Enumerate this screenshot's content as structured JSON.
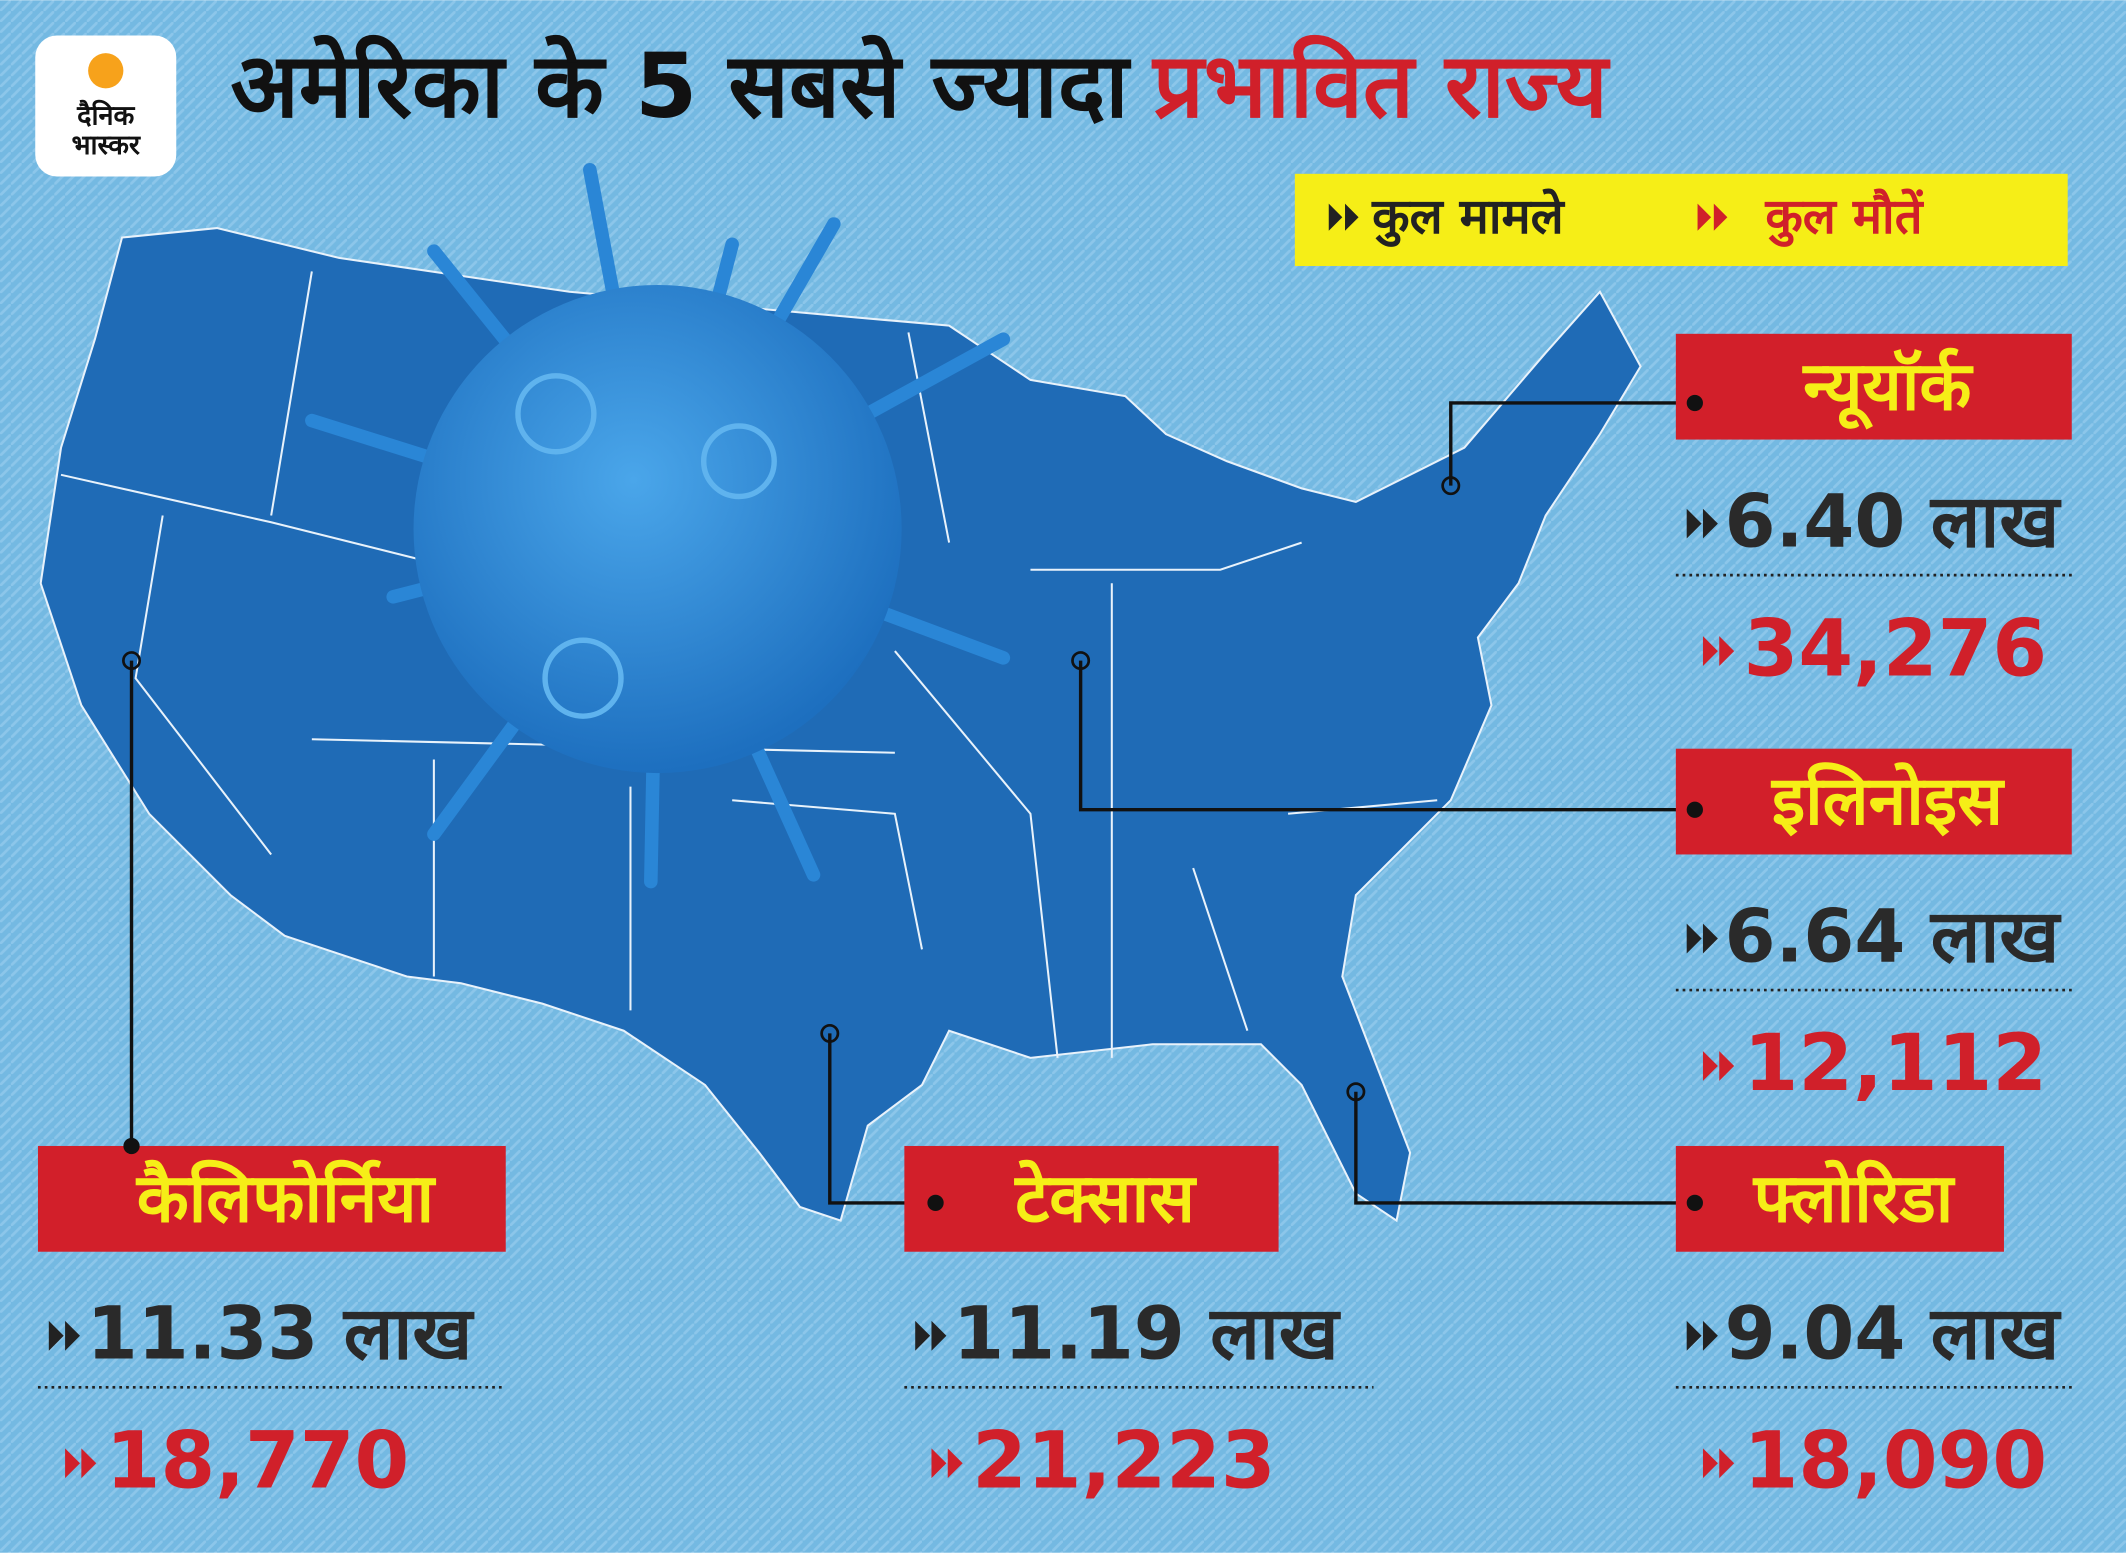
{
  "logo": {
    "line1": "दैनिक",
    "line2": "भास्कर"
  },
  "title": {
    "part1": "अमेरिका के 5 सबसे ज्यादा",
    "part2": "प्रभावित राज्य"
  },
  "legend": {
    "cases": "कुल मामले",
    "deaths": "कुल मौतें"
  },
  "states": [
    {
      "name": "न्यूयॉर्क",
      "cases": "6.40 लाख",
      "deaths": "34,276"
    },
    {
      "name": "इलिनोइस",
      "cases": "6.64 लाख",
      "deaths": "12,112"
    },
    {
      "name": "फ्लोरिडा",
      "cases": "9.04 लाख",
      "deaths": "18,090"
    },
    {
      "name": "कैलिफोर्निया",
      "cases": "11.33 लाख",
      "deaths": "18,770"
    },
    {
      "name": "टेक्सास",
      "cases": "11.19 लाख",
      "deaths": "21,223"
    }
  ]
}
